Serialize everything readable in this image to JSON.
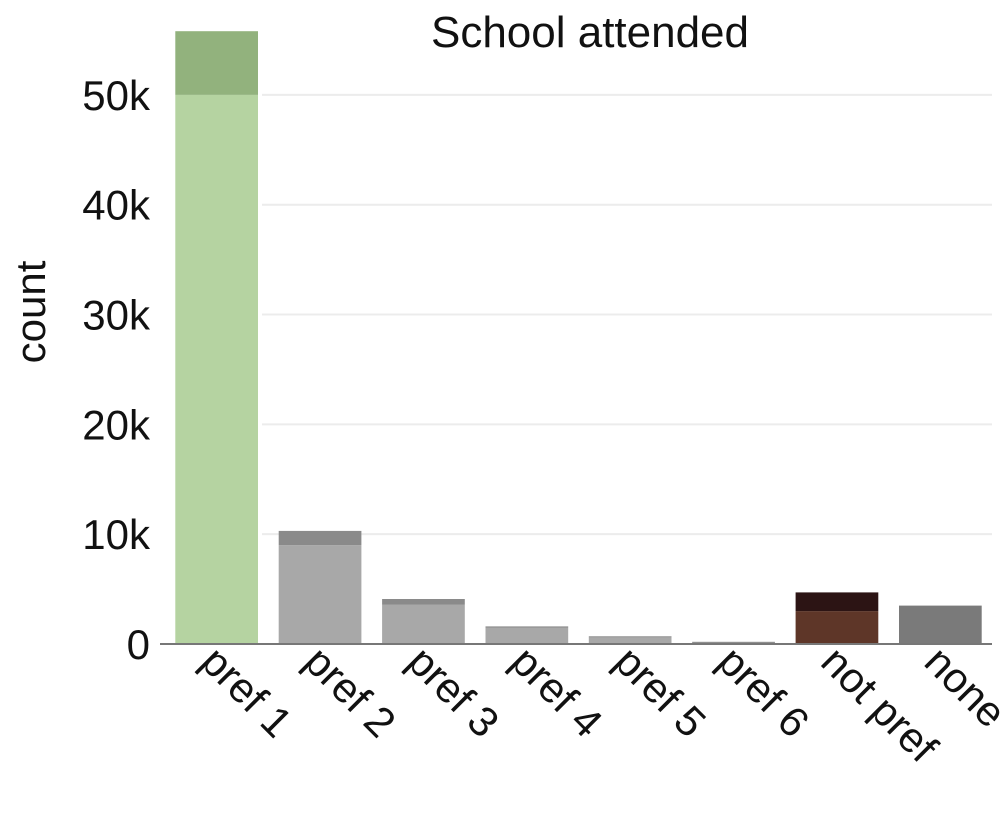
{
  "chart_data": {
    "type": "bar",
    "title": "School attended",
    "xlabel": "",
    "ylabel": "count",
    "categories": [
      "pref 1",
      "pref 2",
      "pref 3",
      "pref 4",
      "pref 5",
      "pref 6",
      "not pref",
      "none"
    ],
    "series": [
      {
        "values": [
          50000,
          9000,
          3600,
          1500,
          600,
          150,
          3000,
          3500
        ]
      },
      {
        "values": [
          5800,
          1300,
          500,
          100,
          100,
          50,
          1700,
          0
        ]
      }
    ],
    "colors": [
      [
        "#b5d3a1",
        "#92b27d"
      ],
      [
        "#a8a8a8",
        "#8a8a8a"
      ],
      [
        "#a8a8a8",
        "#8a8a8a"
      ],
      [
        "#a8a8a8",
        "#8a8a8a"
      ],
      [
        "#a8a8a8",
        "#8a8a8a"
      ],
      [
        "#a8a8a8",
        "#8a8a8a"
      ],
      [
        "#5e3628",
        "#2c1414"
      ],
      [
        "#7a7a7a",
        "#7a7a7a"
      ]
    ],
    "yticks": [
      0,
      10000,
      20000,
      30000,
      40000,
      50000
    ],
    "ytick_labels": [
      "0",
      "10k",
      "20k",
      "30k",
      "40k",
      "50k"
    ],
    "ylim": [
      0,
      56000
    ],
    "grid": true
  }
}
